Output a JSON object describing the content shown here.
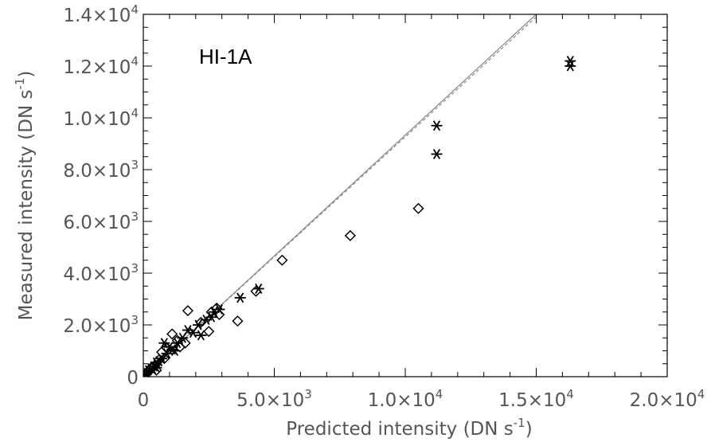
{
  "chart_data": {
    "type": "scatter",
    "panel_label": "HI-1A",
    "xlabel": "Predicted intensity (DN s",
    "xlabel_sup": "-1",
    "xlabel_end": ")",
    "ylabel": "Measured intensity (DN s",
    "ylabel_sup": "-1",
    "ylabel_end": ")",
    "xlim": [
      0,
      20000
    ],
    "ylim": [
      0,
      14000
    ],
    "x_ticks": [
      {
        "value": 0,
        "label": "0",
        "mantissa": "",
        "exp": ""
      },
      {
        "value": 5000,
        "label": "",
        "mantissa": "5.0×10",
        "exp": "3"
      },
      {
        "value": 10000,
        "label": "",
        "mantissa": "1.0×10",
        "exp": "4"
      },
      {
        "value": 15000,
        "label": "",
        "mantissa": "1.5×10",
        "exp": "4"
      },
      {
        "value": 20000,
        "label": "",
        "mantissa": "2.0×10",
        "exp": "4"
      }
    ],
    "y_ticks": [
      {
        "value": 0,
        "label": "0",
        "mantissa": "",
        "exp": ""
      },
      {
        "value": 2000,
        "label": "",
        "mantissa": "2.0×10",
        "exp": "3"
      },
      {
        "value": 4000,
        "label": "",
        "mantissa": "4.0×10",
        "exp": "3"
      },
      {
        "value": 6000,
        "label": "",
        "mantissa": "6.0×10",
        "exp": "3"
      },
      {
        "value": 8000,
        "label": "",
        "mantissa": "8.0×10",
        "exp": "3"
      },
      {
        "value": 10000,
        "label": "",
        "mantissa": "1.0×10",
        "exp": "4"
      },
      {
        "value": 12000,
        "label": "",
        "mantissa": "1.2×10",
        "exp": "4"
      },
      {
        "value": 14000,
        "label": "",
        "mantissa": "1.4×10",
        "exp": "4"
      }
    ],
    "lines": [
      {
        "style": "solid",
        "x": [
          0,
          15000
        ],
        "y": [
          0,
          14000
        ],
        "color": "#888888"
      },
      {
        "style": "dashed",
        "x": [
          0,
          15000
        ],
        "y": [
          0,
          13900
        ],
        "color": "#888888"
      }
    ],
    "series": [
      {
        "marker": "asterisk",
        "points": [
          [
            16300,
            12200
          ],
          [
            16300,
            12000
          ],
          [
            11200,
            9700
          ],
          [
            11200,
            8600
          ],
          [
            4400,
            3400
          ],
          [
            3700,
            3050
          ],
          [
            2900,
            2600
          ],
          [
            2600,
            2300
          ],
          [
            2400,
            2200
          ],
          [
            2200,
            1600
          ],
          [
            1900,
            1700
          ],
          [
            1700,
            1800
          ],
          [
            1500,
            1500
          ],
          [
            1300,
            1300
          ],
          [
            1100,
            1050
          ],
          [
            900,
            900
          ],
          [
            800,
            1300
          ],
          [
            700,
            700
          ],
          [
            600,
            600
          ],
          [
            500,
            550
          ],
          [
            400,
            400
          ],
          [
            350,
            300
          ],
          [
            300,
            320
          ],
          [
            200,
            250
          ],
          [
            150,
            150
          ],
          [
            100,
            100
          ],
          [
            50,
            60
          ],
          [
            1000,
            1150
          ],
          [
            1200,
            1000
          ],
          [
            2100,
            2000
          ],
          [
            2700,
            2500
          ],
          [
            500,
            350
          ]
        ]
      },
      {
        "marker": "diamond",
        "points": [
          [
            10500,
            6500
          ],
          [
            7900,
            5450
          ],
          [
            5300,
            4500
          ],
          [
            4300,
            3300
          ],
          [
            3600,
            2150
          ],
          [
            2800,
            2650
          ],
          [
            2600,
            2500
          ],
          [
            2500,
            1750
          ],
          [
            1700,
            2550
          ],
          [
            1100,
            1650
          ],
          [
            1300,
            1400
          ],
          [
            900,
            1100
          ],
          [
            700,
            950
          ],
          [
            600,
            650
          ],
          [
            450,
            450
          ],
          [
            300,
            350
          ],
          [
            200,
            200
          ],
          [
            100,
            80
          ],
          [
            1600,
            1300
          ],
          [
            2200,
            2100
          ],
          [
            800,
            700
          ],
          [
            1400,
            1150
          ],
          [
            2900,
            2400
          ],
          [
            500,
            250
          ]
        ]
      }
    ]
  }
}
